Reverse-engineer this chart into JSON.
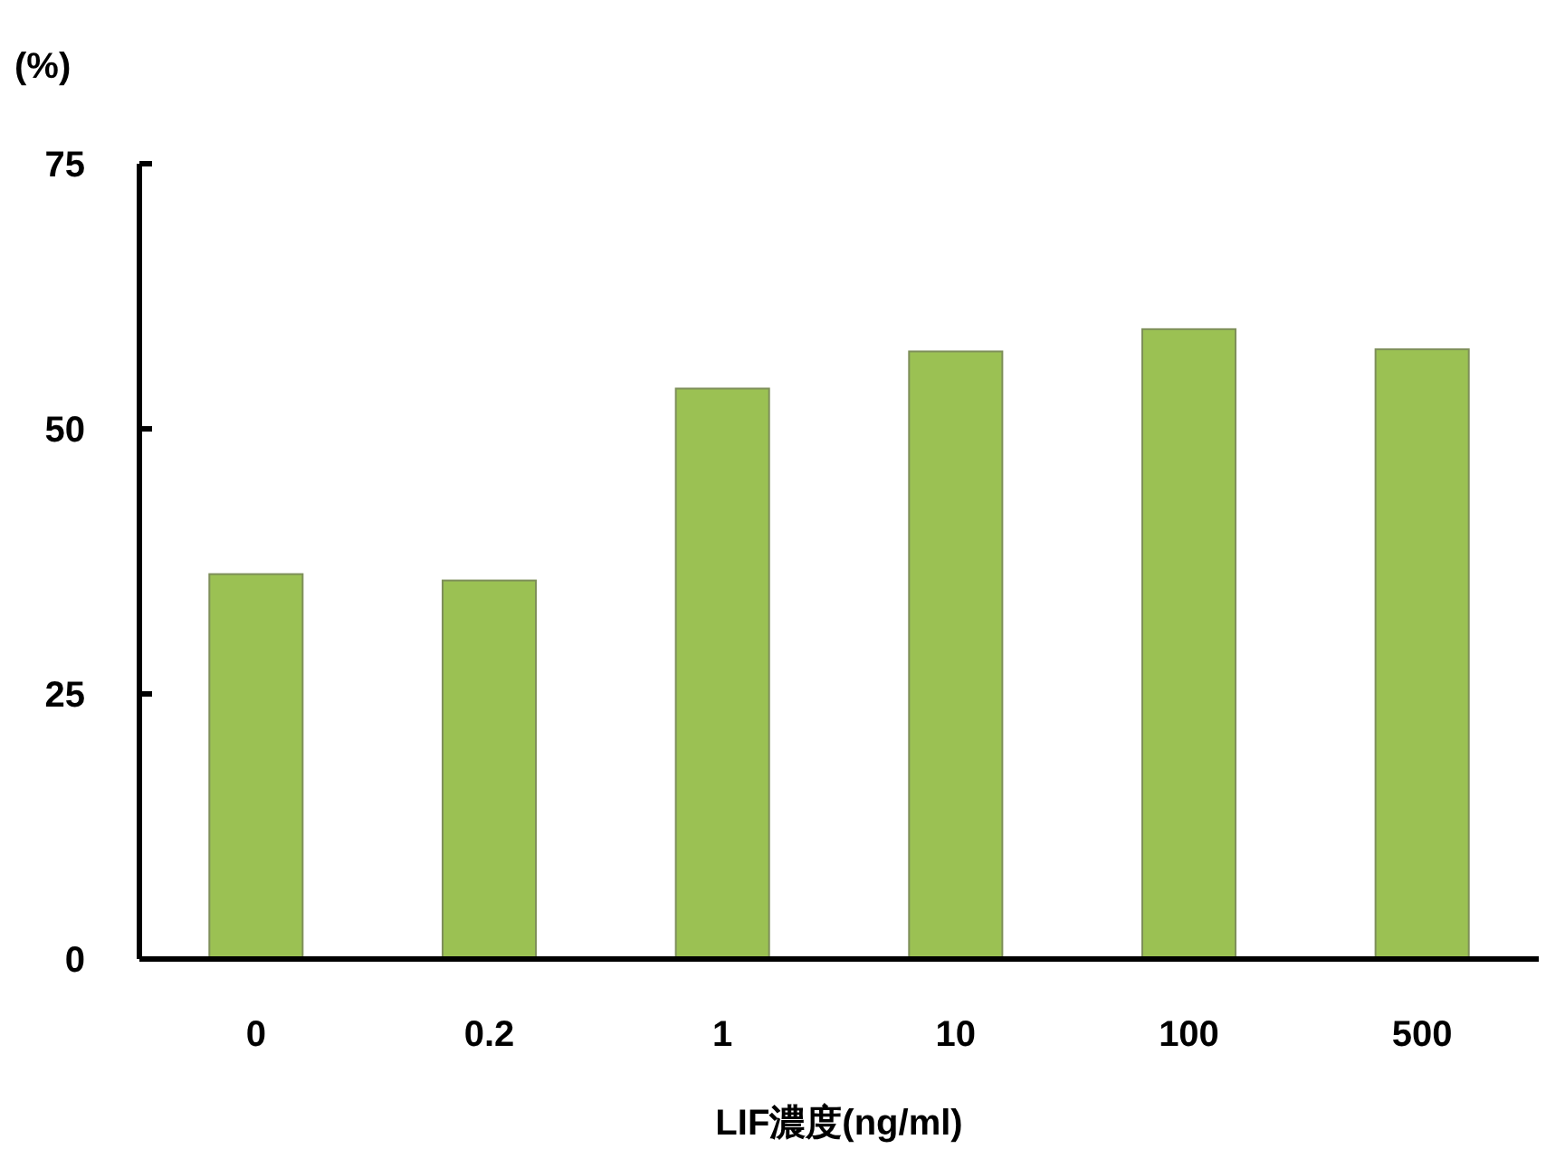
{
  "chart_data": {
    "type": "bar",
    "ylabel": "(%)",
    "xlabel": "LIF濃度(ng/ml)",
    "categories": [
      "0",
      "0.2",
      "1",
      "10",
      "100",
      "500"
    ],
    "values": [
      36.3,
      35.7,
      53.8,
      57.3,
      59.4,
      57.5
    ],
    "color": "#9bc153",
    "ylim": [
      0,
      75
    ],
    "yticks": [
      0,
      25,
      50,
      75
    ]
  }
}
